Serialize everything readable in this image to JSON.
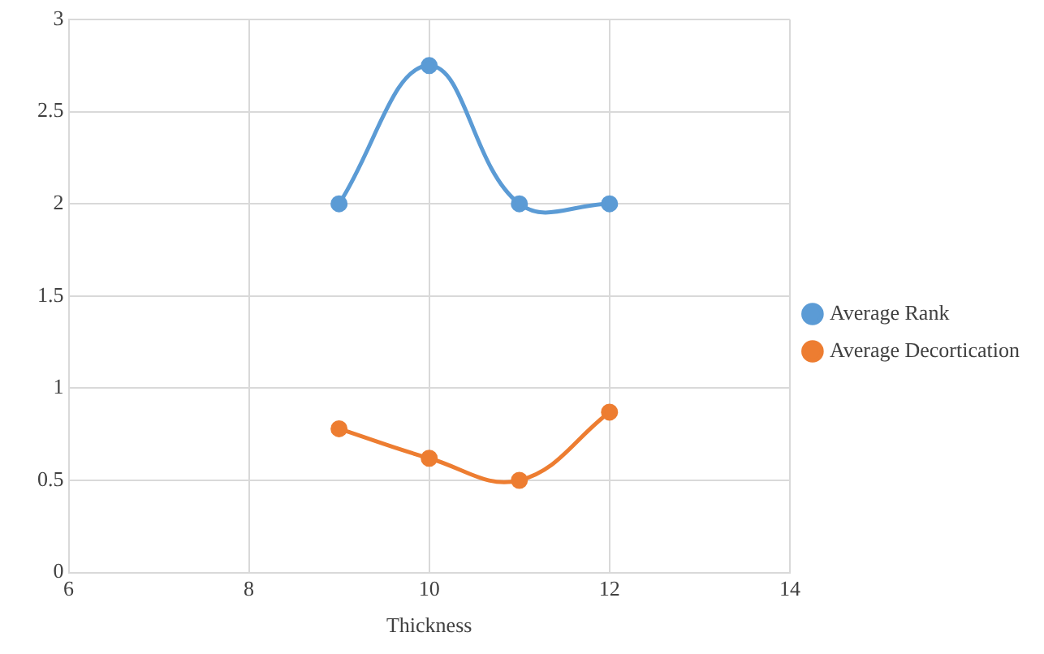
{
  "chart_data": {
    "type": "line",
    "xlabel": "Thickness",
    "x": [
      9,
      10,
      11,
      12
    ],
    "series": [
      {
        "name": "Average Rank",
        "color": "#5b9bd5",
        "values": [
          2,
          2.75,
          2,
          2
        ]
      },
      {
        "name": "Average Decortication",
        "color": "#ed7d31",
        "values": [
          0.78,
          0.62,
          0.5,
          0.87
        ]
      }
    ],
    "xlim": [
      6,
      14
    ],
    "xticks": [
      6,
      8,
      10,
      12,
      14
    ],
    "ylim": [
      0,
      3
    ],
    "yticks": [
      0,
      0.5,
      1,
      1.5,
      2,
      2.5,
      3
    ],
    "grid": true,
    "legend": "right",
    "marker": "circle",
    "line_style": "solid"
  }
}
